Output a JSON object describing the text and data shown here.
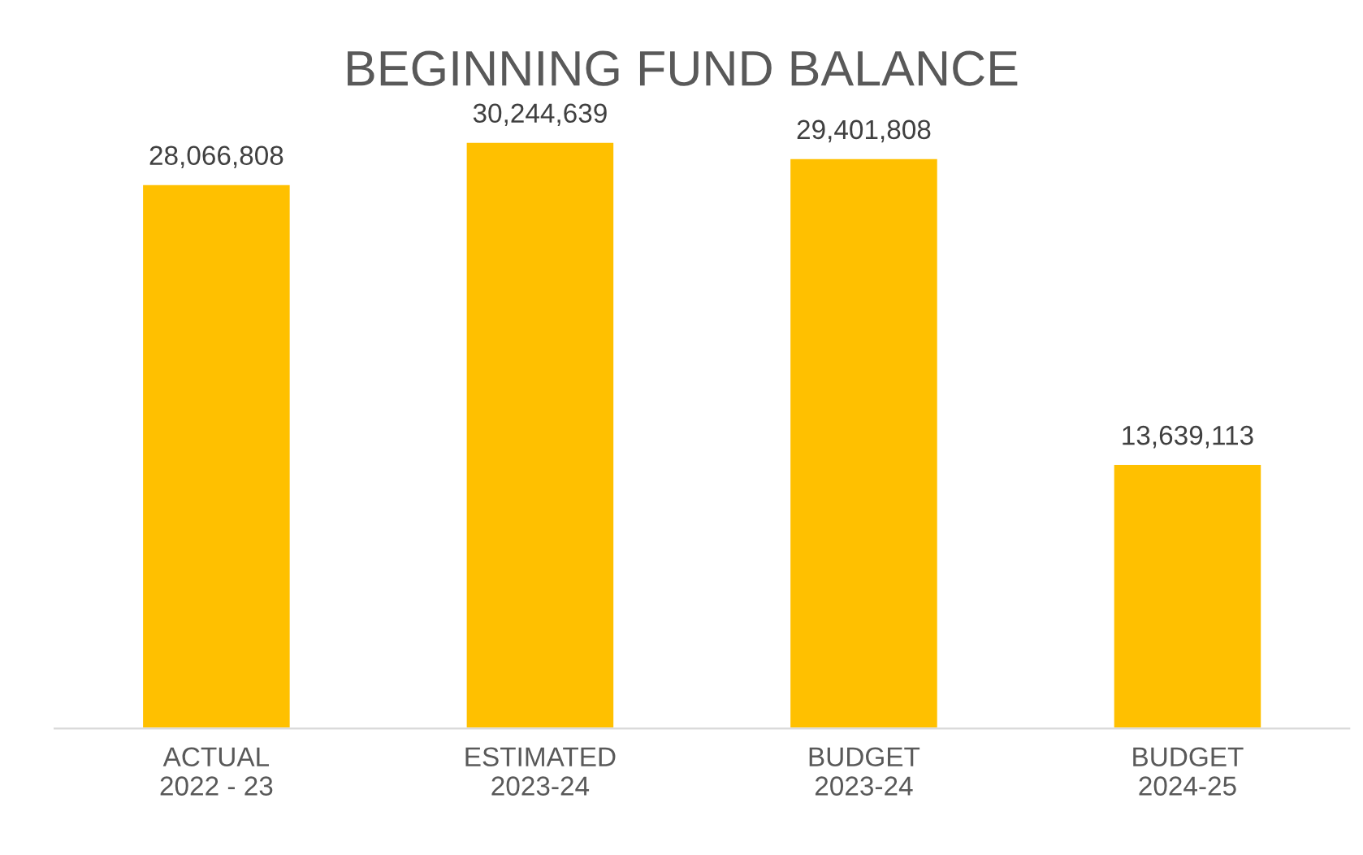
{
  "chart_data": {
    "type": "bar",
    "title": "BEGINNING FUND BALANCE",
    "categories": [
      "ACTUAL\n2022 - 23",
      "ESTIMATED\n2023-24",
      "BUDGET\n2023-24",
      "BUDGET\n2024-25"
    ],
    "values": [
      28066808,
      30244639,
      29401808,
      13639113
    ],
    "value_labels": [
      "28,066,808",
      "30,244,639",
      "29,401,808",
      "13,639,113"
    ],
    "color": "#ffc000",
    "grid": false,
    "legend": false
  }
}
